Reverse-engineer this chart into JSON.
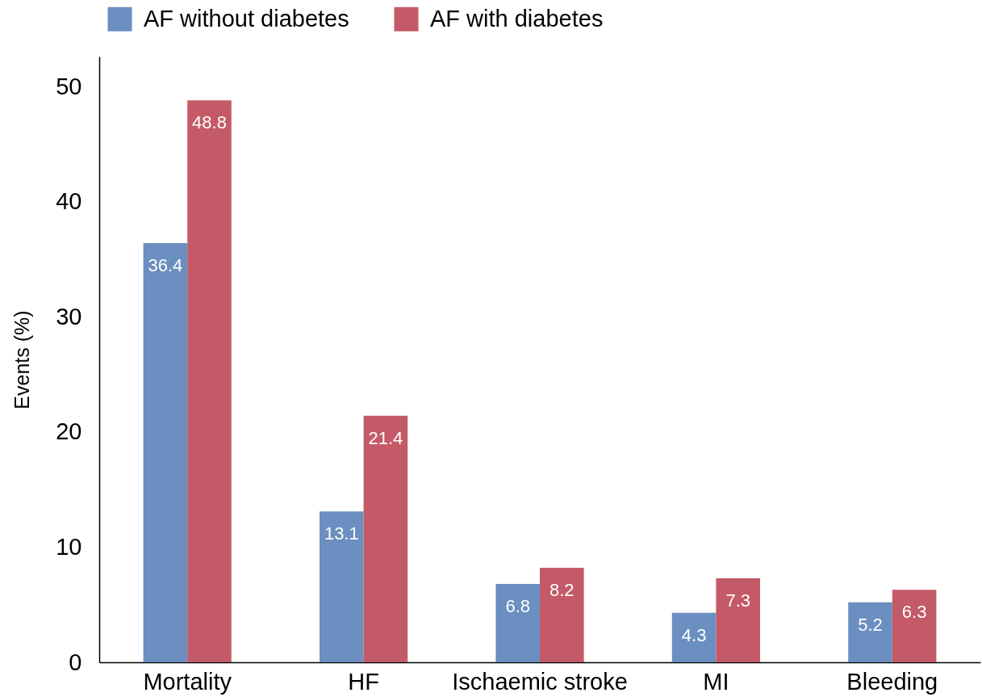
{
  "chart_data": {
    "type": "bar",
    "ylabel": "Events (%)",
    "categories": [
      "Mortality",
      "HF",
      "Ischaemic stroke",
      "MI",
      "Bleeding"
    ],
    "series": [
      {
        "name": "AF without diabetes",
        "color": "#6a8fc0",
        "values": [
          36.4,
          13.1,
          6.8,
          4.3,
          5.2
        ]
      },
      {
        "name": "AF with diabetes",
        "color": "#c45a68",
        "values": [
          48.8,
          21.4,
          8.2,
          7.3,
          6.3
        ]
      }
    ],
    "ylim": [
      0,
      52.6
    ],
    "yticks": [
      0,
      10,
      20,
      30,
      40,
      50
    ],
    "grid": false,
    "legend": "top left",
    "data_labels": true
  }
}
